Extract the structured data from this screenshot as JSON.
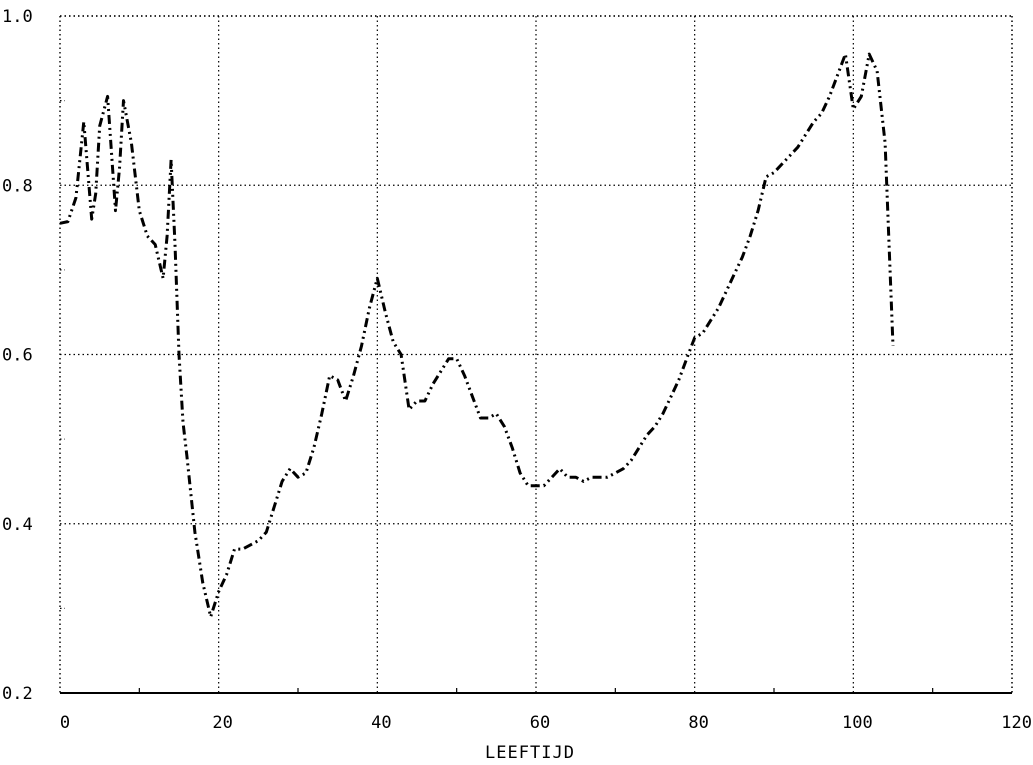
{
  "chart_data": {
    "type": "line",
    "title": "",
    "xlabel": "LEEFTIJD",
    "ylabel": "",
    "xlim": [
      0,
      120
    ],
    "ylim": [
      0.2,
      1.0
    ],
    "x_ticks": [
      0,
      20,
      40,
      60,
      80,
      100,
      120
    ],
    "x_tick_labels": [
      "0",
      "20",
      "40",
      "60",
      "80",
      "100",
      "120"
    ],
    "y_ticks": [
      0.2,
      0.4,
      0.6,
      0.8,
      1.0
    ],
    "y_tick_labels": [
      "0.2",
      "0.4",
      "0.6",
      "0.8",
      "1.0"
    ],
    "grid": true,
    "line_style": "dash-dot-dot",
    "line_color": "#000000",
    "series": [
      {
        "x": [
          0,
          1,
          2,
          3,
          4,
          4.5,
          5,
          6,
          7,
          7.5,
          8,
          9,
          10,
          11,
          12,
          13,
          13.5,
          14,
          14.5,
          15,
          15.5,
          16,
          17,
          18,
          19,
          20,
          21,
          22,
          23,
          24,
          25,
          26,
          27,
          28,
          29,
          30,
          31,
          32,
          33,
          34,
          35,
          36,
          37,
          38,
          39,
          40,
          41,
          42,
          43,
          44,
          45,
          46,
          47,
          48,
          49,
          50,
          51,
          52,
          53,
          54,
          55,
          56,
          57,
          58,
          59,
          60,
          61,
          62,
          63,
          64,
          65,
          66,
          67,
          68,
          69,
          70,
          71,
          72,
          73,
          74,
          75,
          76,
          77,
          78,
          79,
          80,
          81,
          82,
          83,
          84,
          85,
          86,
          87,
          88,
          89,
          90,
          91,
          92,
          93,
          94,
          95,
          96,
          97,
          98,
          99,
          100,
          101,
          102,
          103,
          104,
          105
        ],
        "y": [
          0.755,
          0.757,
          0.785,
          0.875,
          0.76,
          0.79,
          0.87,
          0.905,
          0.77,
          0.82,
          0.9,
          0.85,
          0.77,
          0.74,
          0.73,
          0.69,
          0.74,
          0.83,
          0.73,
          0.6,
          0.52,
          0.48,
          0.39,
          0.33,
          0.29,
          0.32,
          0.34,
          0.37,
          0.37,
          0.375,
          0.38,
          0.39,
          0.42,
          0.45,
          0.465,
          0.455,
          0.46,
          0.49,
          0.53,
          0.575,
          0.57,
          0.545,
          0.575,
          0.61,
          0.655,
          0.69,
          0.65,
          0.615,
          0.6,
          0.535,
          0.545,
          0.545,
          0.565,
          0.58,
          0.595,
          0.595,
          0.575,
          0.55,
          0.525,
          0.525,
          0.53,
          0.515,
          0.49,
          0.46,
          0.445,
          0.445,
          0.445,
          0.455,
          0.465,
          0.455,
          0.455,
          0.45,
          0.455,
          0.455,
          0.455,
          0.46,
          0.465,
          0.475,
          0.49,
          0.505,
          0.515,
          0.53,
          0.55,
          0.57,
          0.595,
          0.62,
          0.625,
          0.64,
          0.655,
          0.675,
          0.695,
          0.715,
          0.74,
          0.77,
          0.81,
          0.815,
          0.825,
          0.835,
          0.845,
          0.86,
          0.875,
          0.885,
          0.905,
          0.93,
          0.955,
          0.89,
          0.905,
          0.955,
          0.935,
          0.85,
          0.61
        ]
      }
    ]
  }
}
